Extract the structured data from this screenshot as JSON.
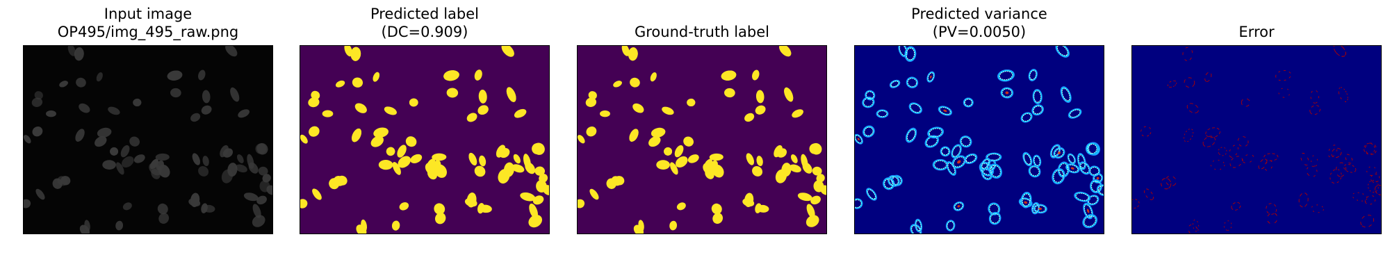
{
  "figure": {
    "panels": [
      {
        "title_lines": [
          "Input image",
          "OP495/img_495_raw.png"
        ],
        "image": "grayscale nuclei microscopy image",
        "colors": {
          "background": "#050505",
          "nuclei": "#3a3a3a"
        }
      },
      {
        "title_lines": [
          "Predicted label",
          "(DC=0.909)"
        ],
        "image": "binary segmentation mask",
        "colors": {
          "background": "#440154",
          "nuclei": "#fde725"
        }
      },
      {
        "title_lines": [
          "Ground-truth label"
        ],
        "image": "ground-truth segmentation mask",
        "colors": {
          "background": "#440154",
          "nuclei": "#fde725"
        }
      },
      {
        "title_lines": [
          "Predicted variance",
          "(PV=0.0050)"
        ],
        "image": "variance heatmap (jet colormap) outlining nuclei",
        "colors": {
          "background": "#00007f",
          "ring_outer": "#1f8fff",
          "ring_mid": "#00e5ff",
          "ring_inner": "#f5f5f5",
          "hot": "#ff3b00"
        }
      },
      {
        "title_lines": [
          "Error"
        ],
        "image": "error map (jet colormap) with faint red nucleus edges",
        "colors": {
          "background": "#00007f",
          "edge": "#b00000"
        }
      }
    ]
  }
}
